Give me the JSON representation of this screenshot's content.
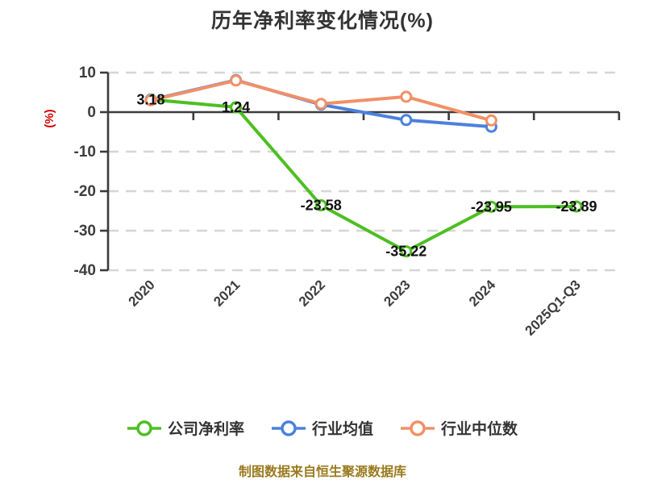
{
  "title": "历年净利率变化情况(%)",
  "caption": "制图数据来自恒生聚源数据库",
  "colors": {
    "company": "#4dbf21",
    "industry_mean": "#4b81dd",
    "industry_median": "#f19067",
    "grid": "#d6d6d6",
    "axis": "#3b3b3b",
    "ylabel": "#d40000",
    "data_label": "#111111",
    "caption": "#9a7a1f"
  },
  "chart_data": {
    "type": "line",
    "title": "历年净利率变化情况(%)",
    "xlabel": "",
    "ylabel": "(%)",
    "categories": [
      "2020",
      "2021",
      "2022",
      "2023",
      "2024",
      "2025Q1-Q3"
    ],
    "yticks": [
      10,
      0,
      -10,
      -20,
      -30,
      -40
    ],
    "ylim": [
      -40,
      10
    ],
    "grid": "horizontal dashed, solid axis line at 0",
    "legend_position": "bottom",
    "series": [
      {
        "name": "公司净利率",
        "color": "#4dbf21",
        "values": [
          3.18,
          1.24,
          -23.58,
          -35.22,
          -23.95,
          -23.89
        ],
        "data_labels": [
          "3.18",
          "1.24",
          "-23.58",
          "-35.22",
          "-23.95",
          "-23.89"
        ]
      },
      {
        "name": "行业均值",
        "color": "#4b81dd",
        "values": [
          3.1,
          8.1,
          1.9,
          -2.0,
          -3.7
        ],
        "data_labels": null
      },
      {
        "name": "行业中位数",
        "color": "#f19067",
        "values": [
          3.0,
          8.0,
          2.1,
          3.9,
          -2.1
        ],
        "data_labels": null
      }
    ]
  }
}
